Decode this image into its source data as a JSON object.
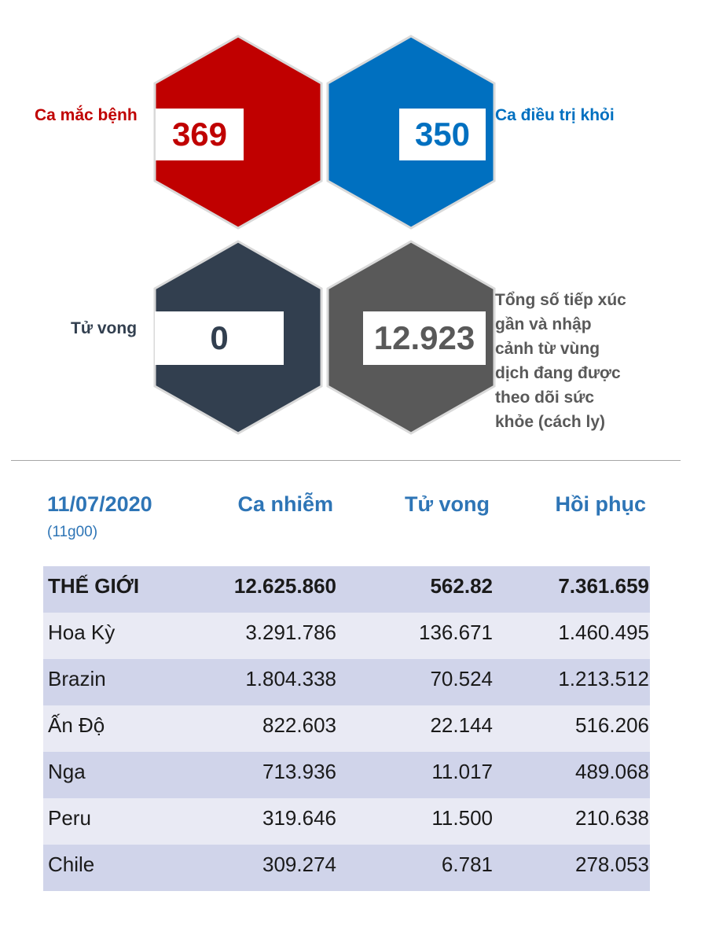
{
  "stats": {
    "cases": {
      "value": "369",
      "label": "Ca mắc bệnh",
      "color": "#c00000"
    },
    "recovered": {
      "value": "350",
      "label": "Ca điều trị khỏi",
      "color": "#0070c0"
    },
    "deaths": {
      "value": "0",
      "label": "Tử vong",
      "color": "#323f4f"
    },
    "monitored": {
      "value": "12.923",
      "label_lines": [
        "Tổng số tiếp xúc",
        "gần và nhập",
        "cảnh từ vùng",
        "dịch đang được",
        "theo dõi sức",
        "khỏe (cách ly)"
      ],
      "color": "#595959"
    }
  },
  "table": {
    "date": "11/07/2020",
    "time": "(11g00)",
    "headers": [
      "Ca nhiễm",
      "Tử vong",
      "Hồi phục"
    ],
    "rows": [
      {
        "name": "THẾ GIỚI",
        "cases": "12.625.860",
        "deaths": "562.82",
        "recovered": "7.361.659"
      },
      {
        "name": "Hoa Kỳ",
        "cases": "3.291.786",
        "deaths": "136.671",
        "recovered": "1.460.495"
      },
      {
        "name": "Brazin",
        "cases": "1.804.338",
        "deaths": "70.524",
        "recovered": "1.213.512"
      },
      {
        "name": "Ấn Độ",
        "cases": "822.603",
        "deaths": "22.144",
        "recovered": "516.206"
      },
      {
        "name": "Nga",
        "cases": "713.936",
        "deaths": "11.017",
        "recovered": "489.068"
      },
      {
        "name": "Peru",
        "cases": "319.646",
        "deaths": "11.500",
        "recovered": "210.638"
      },
      {
        "name": "Chile",
        "cases": "309.274",
        "deaths": "6.781",
        "recovered": "278.053"
      }
    ]
  }
}
